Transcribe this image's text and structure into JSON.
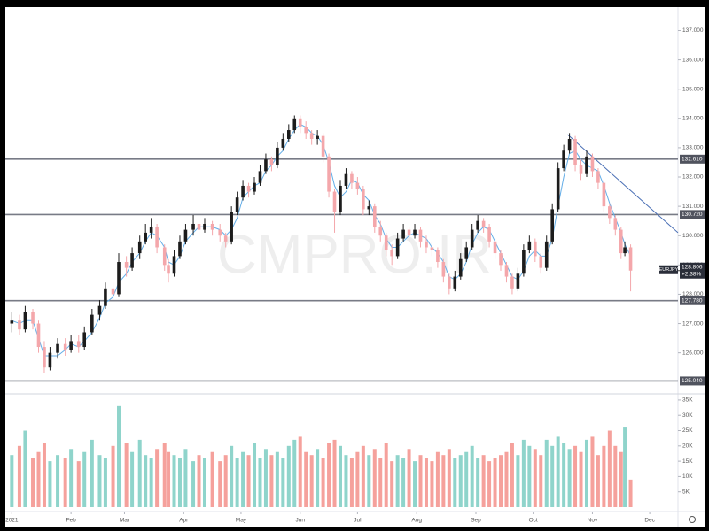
{
  "chart_data": {
    "type": "candlestick",
    "watermark": "CMPRO.IR",
    "symbol": "EURJPY",
    "price_label": "128.806",
    "change": "+2.38%",
    "up_color": "#1c1c1c",
    "down_color": "#f4a7ab",
    "volume_up_color": "#8fd4cb",
    "volume_down_color": "#f5a19c",
    "ma_color": "#64aee8",
    "level_color": "#787b86",
    "trend_color": "#4a6fb5",
    "xlim": [
      -3.4,
      348.8
    ],
    "ylim": [
      124.6,
      137.8
    ],
    "volume_lim": [
      0,
      37000
    ],
    "xticks": [
      {
        "value": 0,
        "label": "2021"
      },
      {
        "value": 31,
        "label": "Feb"
      },
      {
        "value": 59,
        "label": "Mar"
      },
      {
        "value": 90,
        "label": "Apr"
      },
      {
        "value": 120,
        "label": "May"
      },
      {
        "value": 151,
        "label": "Jun"
      },
      {
        "value": 181,
        "label": "Jul"
      },
      {
        "value": 212,
        "label": "Aug"
      },
      {
        "value": 243,
        "label": "Sep"
      },
      {
        "value": 273,
        "label": "Oct"
      },
      {
        "value": 304,
        "label": "Nov"
      },
      {
        "value": 334,
        "label": "Dec"
      }
    ],
    "yticks": [
      {
        "value": 126,
        "label": "126.000"
      },
      {
        "value": 127,
        "label": "127.000"
      },
      {
        "value": 128,
        "label": "128.000"
      },
      {
        "value": 129,
        "label": "129.000"
      },
      {
        "value": 130,
        "label": "130.000"
      },
      {
        "value": 131,
        "label": "131.000"
      },
      {
        "value": 132,
        "label": "132.000"
      },
      {
        "value": 133,
        "label": "133.000"
      },
      {
        "value": 134,
        "label": "134.000"
      },
      {
        "value": 135,
        "label": "135.000"
      },
      {
        "value": 136,
        "label": "136.000"
      },
      {
        "value": 137,
        "label": "137.000"
      }
    ],
    "volume_ticks": [
      {
        "value": 5000,
        "label": "5K"
      },
      {
        "value": 10000,
        "label": "10K"
      },
      {
        "value": 15000,
        "label": "15K"
      },
      {
        "value": 20000,
        "label": "20K"
      },
      {
        "value": 25000,
        "label": "25K"
      },
      {
        "value": 30000,
        "label": "30K"
      },
      {
        "value": 35000,
        "label": "35K"
      }
    ],
    "levels": [
      {
        "value": 132.61,
        "label": "132.610"
      },
      {
        "value": 130.72,
        "label": "130.720"
      },
      {
        "value": 127.78,
        "label": "127.780"
      },
      {
        "value": 125.04,
        "label": "125.040"
      }
    ],
    "trendline": {
      "x": [
        291,
        348.8
      ],
      "y": [
        133.45,
        130.1
      ]
    },
    "x": [
      0,
      4,
      7,
      11,
      14,
      17,
      20,
      24,
      28,
      31,
      35,
      38,
      42,
      46,
      49,
      53,
      56,
      60,
      63,
      67,
      70,
      73,
      76,
      80,
      82,
      85,
      88,
      91,
      95,
      98,
      101,
      105,
      109,
      112,
      115,
      118,
      121,
      124,
      127,
      130,
      133,
      136,
      139,
      142,
      145,
      148,
      151,
      154,
      157,
      160,
      163,
      166,
      169,
      172,
      175,
      178,
      181,
      184,
      187,
      190,
      193,
      196,
      199,
      202,
      205,
      208,
      211,
      214,
      217,
      220,
      223,
      226,
      229,
      232,
      235,
      238,
      241,
      244,
      247,
      250,
      253,
      256,
      259,
      262,
      265,
      268,
      271,
      274,
      277,
      280,
      283,
      286,
      289,
      292,
      295,
      298,
      301,
      304,
      307,
      310,
      313,
      316,
      319,
      321,
      324
    ],
    "open": [
      127.0,
      127.1,
      126.8,
      127.4,
      127.0,
      126.2,
      125.5,
      126.0,
      126.3,
      126.1,
      126.4,
      126.2,
      126.7,
      127.3,
      127.6,
      128.2,
      128.0,
      129.1,
      128.9,
      129.4,
      129.8,
      130.1,
      130.3,
      129.6,
      129.0,
      128.7,
      129.3,
      129.8,
      130.2,
      130.4,
      130.2,
      130.4,
      130.2,
      130.0,
      129.8,
      130.8,
      131.3,
      131.7,
      131.5,
      131.8,
      132.2,
      132.6,
      132.4,
      133.0,
      133.3,
      133.6,
      134.0,
      133.7,
      133.5,
      133.3,
      133.4,
      132.7,
      131.5,
      130.8,
      131.7,
      132.1,
      131.8,
      131.6,
      130.9,
      131.0,
      130.3,
      130.0,
      129.5,
      129.3,
      129.9,
      130.2,
      130.0,
      130.2,
      129.8,
      129.6,
      129.5,
      129.1,
      128.6,
      128.2,
      128.6,
      129.2,
      129.6,
      130.2,
      130.5,
      130.3,
      129.8,
      129.4,
      129.0,
      128.6,
      128.2,
      128.7,
      129.5,
      129.8,
      129.3,
      128.9,
      129.8,
      130.9,
      132.3,
      132.9,
      133.3,
      132.4,
      132.1,
      132.7,
      132.2,
      131.8,
      131.0,
      130.6,
      130.2,
      129.4,
      129.6
    ],
    "high": [
      127.4,
      127.3,
      127.6,
      127.5,
      127.1,
      126.4,
      126.2,
      126.5,
      126.5,
      126.6,
      126.6,
      126.9,
      127.5,
      127.8,
      128.4,
      128.4,
      129.4,
      129.3,
      129.6,
      130.0,
      130.4,
      130.6,
      130.4,
      129.7,
      129.2,
      129.5,
      130.0,
      130.4,
      130.7,
      130.6,
      130.6,
      130.5,
      130.4,
      130.1,
      131.0,
      131.5,
      131.9,
      131.8,
      132.0,
      132.4,
      132.8,
      132.7,
      133.2,
      133.5,
      133.8,
      134.1,
      134.1,
      133.9,
      133.6,
      133.6,
      133.5,
      132.8,
      131.6,
      131.9,
      132.3,
      132.2,
      132.0,
      131.7,
      131.2,
      131.1,
      130.5,
      130.1,
      129.7,
      130.1,
      130.4,
      130.3,
      130.4,
      130.3,
      130.0,
      129.8,
      129.6,
      129.2,
      128.7,
      128.8,
      129.4,
      129.8,
      130.4,
      130.7,
      130.6,
      130.4,
      129.9,
      129.5,
      129.1,
      128.7,
      128.9,
      129.7,
      130.0,
      129.9,
      129.4,
      130.0,
      131.1,
      132.5,
      133.1,
      133.5,
      133.4,
      132.6,
      132.9,
      132.8,
      132.3,
      131.9,
      131.1,
      130.7,
      130.3,
      129.8,
      129.7
    ],
    "low": [
      126.7,
      126.6,
      126.7,
      126.8,
      126.0,
      125.3,
      125.4,
      125.8,
      125.9,
      126.0,
      126.0,
      126.1,
      126.6,
      127.1,
      127.5,
      127.8,
      127.9,
      128.6,
      128.8,
      129.2,
      129.7,
      129.9,
      129.4,
      128.8,
      128.4,
      128.6,
      129.2,
      129.7,
      130.0,
      130.0,
      130.1,
      130.0,
      129.8,
      129.6,
      129.7,
      130.7,
      131.2,
      131.3,
      131.4,
      131.7,
      132.1,
      132.2,
      132.3,
      132.9,
      133.2,
      133.5,
      133.5,
      133.3,
      133.1,
      133.1,
      132.5,
      131.3,
      130.1,
      130.7,
      131.6,
      131.6,
      131.4,
      130.7,
      130.7,
      130.1,
      129.8,
      129.3,
      129.0,
      129.2,
      129.8,
      129.8,
      129.9,
      129.6,
      129.4,
      129.3,
      128.9,
      128.4,
      128.0,
      128.1,
      128.5,
      129.1,
      129.5,
      130.1,
      130.1,
      129.6,
      129.2,
      128.8,
      128.4,
      128.0,
      128.1,
      128.6,
      129.4,
      129.1,
      128.7,
      128.8,
      129.7,
      130.8,
      132.2,
      132.8,
      132.2,
      131.9,
      132.0,
      132.0,
      131.6,
      130.8,
      130.4,
      130.0,
      129.2,
      129.3,
      128.1
    ],
    "close": [
      127.1,
      126.8,
      127.4,
      127.0,
      126.2,
      125.5,
      126.0,
      126.3,
      126.1,
      126.4,
      126.2,
      126.7,
      127.3,
      127.6,
      128.2,
      128.0,
      129.1,
      128.9,
      129.4,
      129.8,
      130.1,
      130.3,
      129.6,
      129.0,
      128.7,
      129.3,
      129.8,
      130.2,
      130.4,
      130.2,
      130.4,
      130.2,
      130.0,
      129.8,
      130.8,
      131.3,
      131.7,
      131.5,
      131.8,
      132.2,
      132.6,
      132.4,
      133.0,
      133.3,
      133.6,
      134.0,
      133.7,
      133.5,
      133.3,
      133.4,
      132.7,
      131.5,
      130.8,
      131.7,
      132.1,
      131.8,
      131.6,
      130.9,
      131.0,
      130.3,
      130.0,
      129.5,
      129.3,
      129.9,
      130.2,
      130.0,
      130.2,
      129.8,
      129.6,
      129.5,
      129.1,
      128.6,
      128.2,
      128.6,
      129.2,
      129.6,
      130.2,
      130.5,
      130.3,
      129.8,
      129.4,
      129.0,
      128.6,
      128.2,
      128.7,
      129.5,
      129.8,
      129.3,
      128.9,
      129.8,
      130.9,
      132.3,
      132.9,
      133.3,
      132.4,
      132.1,
      132.7,
      132.2,
      131.8,
      131.0,
      130.6,
      130.2,
      129.4,
      129.6,
      128.806
    ],
    "volume": [
      17000,
      20000,
      25000,
      16000,
      18000,
      21000,
      15000,
      17000,
      16000,
      19000,
      15000,
      18000,
      22000,
      17000,
      16000,
      20000,
      33000,
      21000,
      18000,
      22000,
      17000,
      16000,
      19000,
      21000,
      18000,
      17000,
      16000,
      19000,
      15000,
      17000,
      16000,
      18000,
      15000,
      17000,
      20000,
      16000,
      18000,
      17000,
      21000,
      16000,
      19000,
      17000,
      18000,
      16000,
      20000,
      22000,
      23000,
      18000,
      17000,
      19000,
      16000,
      21000,
      22000,
      20000,
      17000,
      16000,
      18000,
      20000,
      17000,
      19000,
      16000,
      21000,
      15000,
      17000,
      16000,
      19000,
      15000,
      17000,
      16000,
      15000,
      18000,
      17000,
      19000,
      16000,
      17000,
      18000,
      20000,
      16000,
      17000,
      15000,
      16000,
      17000,
      18000,
      21000,
      17000,
      22000,
      20000,
      19000,
      17000,
      22000,
      20000,
      23000,
      21000,
      19000,
      20000,
      18000,
      22000,
      23000,
      17000,
      20000,
      25000,
      20000,
      18000,
      26000,
      9000
    ],
    "ma": [
      127.1,
      127.0,
      127.1,
      127.1,
      126.5,
      125.9,
      125.9,
      125.9,
      126.1,
      126.3,
      126.2,
      126.4,
      126.7,
      127.2,
      127.7,
      127.9,
      128.4,
      128.7,
      129.1,
      129.4,
      129.8,
      130.1,
      130.0,
      129.6,
      129.1,
      129.0,
      129.3,
      129.8,
      130.1,
      130.3,
      130.3,
      130.3,
      130.2,
      130.0,
      130.2,
      130.6,
      131.3,
      131.5,
      131.7,
      131.8,
      132.2,
      132.4,
      132.7,
      132.9,
      133.3,
      133.6,
      133.8,
      133.7,
      133.5,
      133.4,
      133.1,
      132.5,
      131.7,
      131.3,
      131.5,
      131.9,
      131.8,
      131.4,
      131.2,
      130.7,
      130.4,
      129.9,
      129.6,
      129.6,
      129.8,
      130.0,
      130.1,
      130.0,
      129.9,
      129.6,
      129.4,
      129.1,
      128.6,
      128.5,
      128.7,
      129.1,
      129.7,
      130.1,
      130.3,
      130.2,
      129.8,
      129.4,
      129.0,
      128.6,
      128.5,
      128.8,
      129.3,
      129.5,
      129.3,
      129.3,
      129.9,
      131.0,
      132.0,
      132.8,
      132.9,
      132.6,
      132.4,
      132.3,
      132.2,
      131.7,
      131.1,
      130.6,
      130.1,
      129.7,
      129.3
    ]
  }
}
